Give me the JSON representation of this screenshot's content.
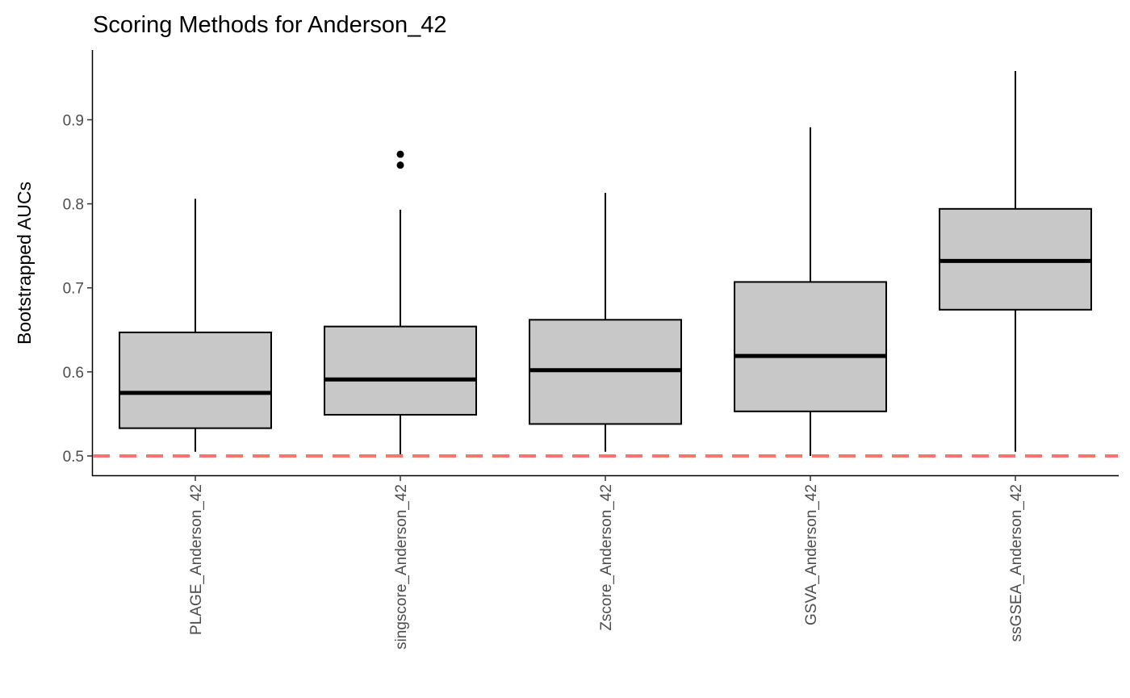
{
  "chart_data": {
    "type": "boxplot",
    "title": "Scoring Methods for Anderson_42",
    "xlabel": "",
    "ylabel": "Bootstrapped AUCs",
    "ylim": [
      0.476,
      0.983
    ],
    "yticks": [
      0.5,
      0.6,
      0.7,
      0.8,
      0.9
    ],
    "yticks_labels": [
      "0.5",
      "0.6",
      "0.7",
      "0.8",
      "0.9"
    ],
    "reference_line": {
      "y": 0.5,
      "style": "dashed",
      "color": "#F8766D"
    },
    "box_fill": "#C8C8C8",
    "box_stroke": "#000000",
    "grid": false,
    "legend": "none",
    "categories": [
      "PLAGE_Anderson_42",
      "singscore_Anderson_42",
      "Zscore_Anderson_42",
      "GSVA_Anderson_42",
      "ssGSEA_Anderson_42"
    ],
    "boxes": [
      {
        "category": "PLAGE_Anderson_42",
        "min": 0.505,
        "q1": 0.533,
        "median": 0.575,
        "q3": 0.647,
        "max": 0.806,
        "outliers": []
      },
      {
        "category": "singscore_Anderson_42",
        "min": 0.5,
        "q1": 0.549,
        "median": 0.591,
        "q3": 0.654,
        "max": 0.793,
        "outliers": [
          0.846,
          0.859
        ]
      },
      {
        "category": "Zscore_Anderson_42",
        "min": 0.505,
        "q1": 0.538,
        "median": 0.602,
        "q3": 0.662,
        "max": 0.813,
        "outliers": []
      },
      {
        "category": "GSVA_Anderson_42",
        "min": 0.5,
        "q1": 0.553,
        "median": 0.619,
        "q3": 0.707,
        "max": 0.891,
        "outliers": []
      },
      {
        "category": "ssGSEA_Anderson_42",
        "min": 0.505,
        "q1": 0.674,
        "median": 0.732,
        "q3": 0.794,
        "max": 0.958,
        "outliers": []
      }
    ]
  }
}
